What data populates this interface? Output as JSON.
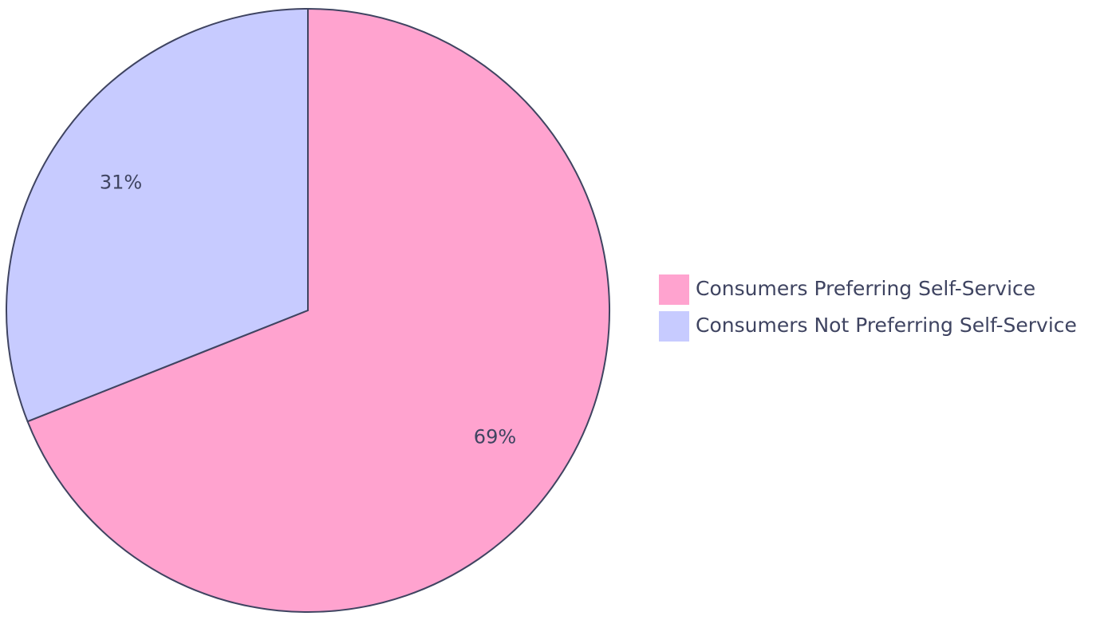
{
  "chart_data": {
    "type": "pie",
    "categories": [
      "Consumers Preferring Self-Service",
      "Consumers Not Preferring Self-Service"
    ],
    "values": [
      69,
      31
    ],
    "value_labels": [
      "69%",
      "31%"
    ],
    "colors": [
      "#ffa3cf",
      "#c7cbff"
    ],
    "legend": "right"
  }
}
